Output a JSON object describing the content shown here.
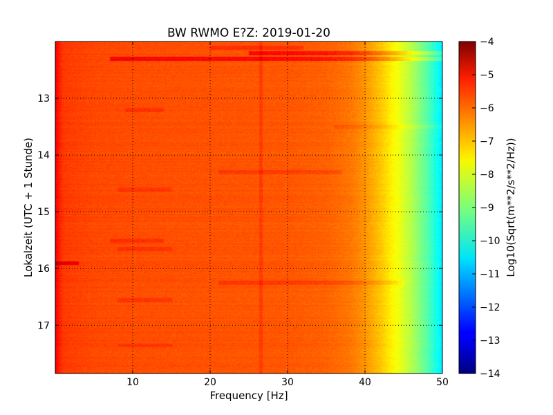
{
  "chart_data": {
    "type": "heatmap",
    "title": "BW RWMO E?Z: 2019-01-20",
    "xlabel": "Frequency [Hz]",
    "ylabel": "Lokalzeit (UTC + 1 Stunde)",
    "xlim": [
      0,
      50
    ],
    "ylim": [
      17.85,
      12.0
    ],
    "x_ticks": [
      10,
      20,
      30,
      40,
      50
    ],
    "y_ticks": [
      13,
      14,
      15,
      16,
      17
    ],
    "grid": true,
    "colormap": "jet",
    "colorbar": {
      "label": "Log10(Sqrt(m**2/s**2/Hz))",
      "range": [
        -14,
        -4
      ],
      "ticks": [
        -4,
        -5,
        -6,
        -7,
        -8,
        -9,
        -10,
        -11,
        -12,
        -13,
        -14
      ]
    },
    "x_profile": {
      "frequency_hz": [
        0,
        0.4,
        1,
        2,
        5,
        10,
        20,
        30,
        35,
        38,
        40,
        42,
        44,
        46,
        48,
        50
      ],
      "log_level": [
        -5.2,
        -5.5,
        -5.8,
        -5.85,
        -5.95,
        -6.0,
        -6.05,
        -6.1,
        -6.2,
        -6.4,
        -6.7,
        -7.2,
        -7.8,
        -8.5,
        -9.4,
        -10.5
      ]
    },
    "bands": [
      {
        "time": 12.2,
        "f_from": 25,
        "f_to": 50,
        "delta": 0.9
      },
      {
        "time": 12.3,
        "f_from": 7,
        "f_to": 50,
        "delta": 0.9
      },
      {
        "time": 12.1,
        "f_from": 20,
        "f_to": 32,
        "delta": 0.4
      },
      {
        "time": 13.5,
        "f_from": 36,
        "f_to": 50,
        "delta": 0.3
      },
      {
        "time": 14.3,
        "f_from": 21,
        "f_to": 37,
        "delta": 0.3
      },
      {
        "time": 15.9,
        "f_from": 0,
        "f_to": 3,
        "delta": 0.9
      },
      {
        "time": 16.25,
        "f_from": 21,
        "f_to": 45,
        "delta": 0.35
      },
      {
        "time": 15.5,
        "f_from": 7,
        "f_to": 14,
        "delta": 0.35
      },
      {
        "time": 15.65,
        "f_from": 8,
        "f_to": 15,
        "delta": 0.3
      },
      {
        "time": 16.55,
        "f_from": 8,
        "f_to": 15,
        "delta": 0.3
      },
      {
        "time": 14.6,
        "f_from": 8,
        "f_to": 15,
        "delta": 0.3
      },
      {
        "time": 13.2,
        "f_from": 9,
        "f_to": 14,
        "delta": 0.3
      },
      {
        "time": 17.35,
        "f_from": 8,
        "f_to": 15,
        "delta": 0.25
      }
    ],
    "tonal_line_hz": 26.5
  }
}
